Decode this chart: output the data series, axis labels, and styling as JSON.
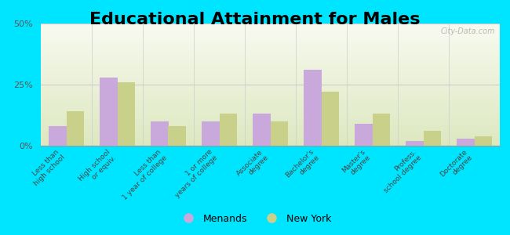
{
  "title": "Educational Attainment for Males",
  "categories": [
    "Less than\nhigh school",
    "High school\nor equiv.",
    "Less than\n1 year of college",
    "1 or more\nyears of college",
    "Associate\ndegree",
    "Bachelor's\ndegree",
    "Master's\ndegree",
    "Profess.\nschool degree",
    "Doctorate\ndegree"
  ],
  "menands": [
    8,
    28,
    10,
    10,
    13,
    31,
    9,
    2,
    3
  ],
  "newyork": [
    14,
    26,
    8,
    13,
    10,
    22,
    13,
    6,
    4
  ],
  "menands_color": "#c9a8dc",
  "newyork_color": "#c8d08a",
  "background_outer": "#00e5ff",
  "background_inner": "#f5f8e8",
  "ylim": [
    0,
    50
  ],
  "yticks": [
    0,
    25,
    50
  ],
  "ytick_labels": [
    "0%",
    "25%",
    "50%"
  ],
  "legend_menands": "Menands",
  "legend_newyork": "New York",
  "title_fontsize": 16,
  "bar_width": 0.35,
  "watermark": "City-Data.com"
}
